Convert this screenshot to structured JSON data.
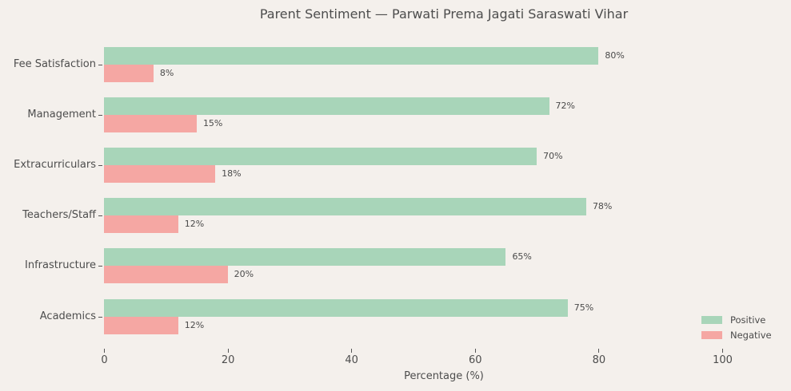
{
  "chart_data": {
    "type": "bar",
    "orientation": "horizontal",
    "title": "Parent Sentiment — Parwati Prema Jagati Saraswati Vihar",
    "xlabel": "Percentage (%)",
    "ylabel": "",
    "xlim": [
      0,
      100
    ],
    "xticks": [
      "0",
      "20",
      "40",
      "60",
      "80",
      "100"
    ],
    "grid": false,
    "legend_position": "lower right",
    "categories": [
      "Fee Satisfaction",
      "Management",
      "Extracurriculars",
      "Teachers/Staff",
      "Infrastructure",
      "Academics"
    ],
    "series": [
      {
        "name": "Positive",
        "color": "#a8d5b9",
        "values": [
          80,
          72,
          70,
          78,
          65,
          75
        ],
        "labels": [
          "80%",
          "72%",
          "70%",
          "78%",
          "65%",
          "75%"
        ]
      },
      {
        "name": "Negative",
        "color": "#f5a7a3",
        "values": [
          8,
          15,
          18,
          12,
          20,
          12
        ],
        "labels": [
          "8%",
          "15%",
          "18%",
          "12%",
          "20%",
          "12%"
        ]
      }
    ]
  }
}
